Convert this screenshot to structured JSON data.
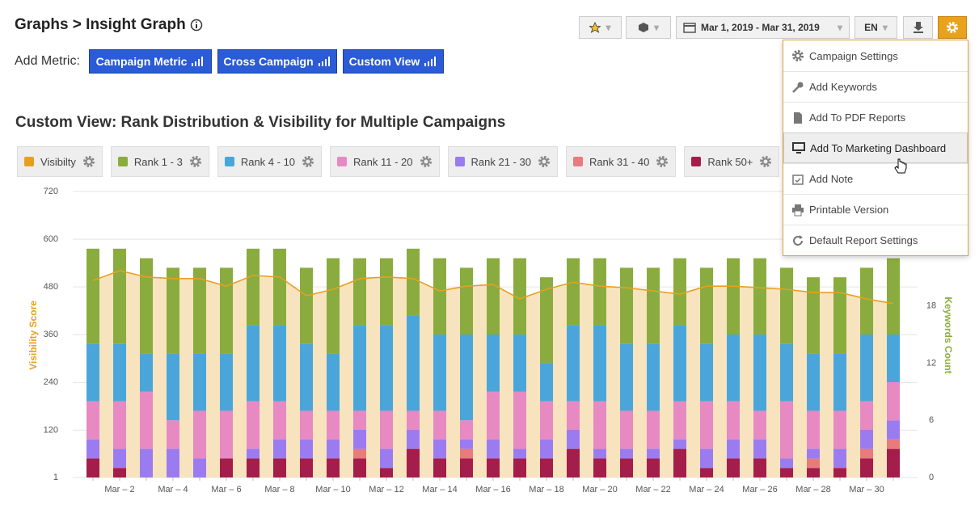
{
  "header": {
    "title": "Graphs > Insight Graph",
    "add_metric": "Add Metric:",
    "buttons": [
      "Campaign Metric",
      "Cross Campaign",
      "Custom View"
    ]
  },
  "toolbar": {
    "date_range": "Mar 1, 2019 - Mar 31, 2019",
    "language": "EN"
  },
  "menu": {
    "items": [
      "Campaign Settings",
      "Add Keywords",
      "Add To PDF Reports",
      "Add To Marketing Dashboard",
      "Add Note",
      "Printable Version",
      "Default Report Settings"
    ]
  },
  "chart_data": {
    "type": "combo",
    "title": "Custom View: Rank Distribution & Visibility for Multiple Campaigns",
    "y_label": "Visibility Score",
    "y2_label": "Keywords Count",
    "categories": [
      null,
      "Mar – 2",
      null,
      "Mar – 4",
      null,
      "Mar – 6",
      null,
      "Mar – 8",
      null,
      "Mar – 10",
      null,
      "Mar – 12",
      null,
      "Mar – 14",
      null,
      "Mar – 16",
      null,
      "Mar – 18",
      null,
      "Mar – 20",
      null,
      "Mar – 22",
      null,
      "Mar – 24",
      null,
      "Mar – 26",
      null,
      "Mar – 28",
      null,
      "Mar – 30",
      null
    ],
    "ylim": [
      1,
      720
    ],
    "yticks": [
      1,
      120,
      240,
      360,
      480,
      600,
      720
    ],
    "y2lim": [
      0,
      30
    ],
    "y2ticks": [
      0,
      6,
      12,
      18
    ],
    "grid": true,
    "series": [
      {
        "name": "Visibilty",
        "type": "area",
        "color": "#e6a020",
        "fill": "#f7e4bf",
        "axis": "y",
        "values": [
          496,
          521,
          505,
          501,
          501,
          482,
          509,
          505,
          458,
          474,
          501,
          505,
          501,
          470,
          482,
          486,
          450,
          474,
          492,
          482,
          478,
          470,
          462,
          482,
          482,
          478,
          474,
          466,
          466,
          450,
          438
        ]
      },
      {
        "name": "Rank 1 - 3",
        "type": "bar",
        "color": "#8aac3e",
        "axis": "y2",
        "values": [
          10,
          10,
          10,
          9,
          9,
          9,
          8,
          8,
          8,
          10,
          7,
          7,
          7,
          8,
          7,
          8,
          8,
          9,
          7,
          7,
          8,
          8,
          7,
          8,
          8,
          8,
          8,
          8,
          8,
          7,
          8
        ]
      },
      {
        "name": "Rank 4 - 10",
        "type": "bar",
        "color": "#4aa6da",
        "axis": "y2",
        "values": [
          6,
          6,
          4,
          7,
          6,
          6,
          8,
          8,
          7,
          6,
          9,
          9,
          10,
          8,
          9,
          6,
          6,
          4,
          8,
          8,
          7,
          7,
          8,
          6,
          7,
          8,
          6,
          6,
          6,
          7,
          5
        ]
      },
      {
        "name": "Rank 11 - 20",
        "type": "bar",
        "color": "#e78ac3",
        "axis": "y2",
        "values": [
          4,
          5,
          6,
          3,
          5,
          5,
          5,
          4,
          3,
          3,
          2,
          4,
          2,
          3,
          2,
          5,
          6,
          4,
          3,
          5,
          4,
          4,
          4,
          5,
          4,
          3,
          6,
          4,
          4,
          3,
          4
        ]
      },
      {
        "name": "Rank 21 - 30",
        "type": "bar",
        "color": "#9b7cf0",
        "axis": "y2",
        "values": [
          2,
          2,
          3,
          3,
          2,
          0,
          1,
          2,
          2,
          2,
          2,
          2,
          2,
          2,
          1,
          2,
          1,
          2,
          2,
          1,
          1,
          1,
          1,
          2,
          2,
          2,
          1,
          1,
          2,
          2,
          2
        ]
      },
      {
        "name": "Rank 31 - 40",
        "type": "bar",
        "color": "#e87b7b",
        "axis": "y2",
        "values": [
          0,
          0,
          0,
          0,
          0,
          0,
          0,
          0,
          0,
          0,
          1,
          0,
          0,
          0,
          1,
          0,
          0,
          0,
          0,
          0,
          0,
          0,
          0,
          0,
          0,
          0,
          0,
          1,
          0,
          1,
          1
        ]
      },
      {
        "name": "Rank 50+",
        "type": "bar",
        "color": "#a51d4a",
        "axis": "y2",
        "values": [
          2,
          1,
          0,
          0,
          0,
          2,
          2,
          2,
          2,
          2,
          2,
          1,
          3,
          2,
          2,
          2,
          2,
          2,
          3,
          2,
          2,
          2,
          3,
          1,
          2,
          2,
          1,
          1,
          1,
          2,
          3
        ]
      }
    ]
  }
}
